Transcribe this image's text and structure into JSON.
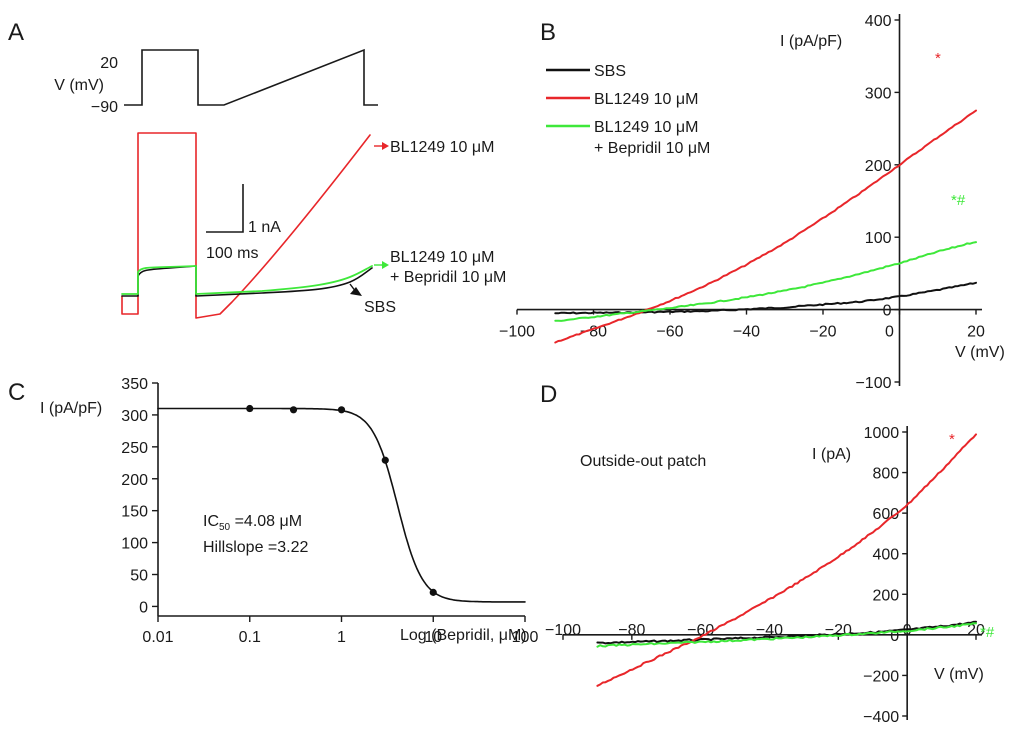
{
  "colors": {
    "red": "#e8262a",
    "green": "#3ee83a",
    "black": "#111111"
  },
  "chart_data": [
    {
      "panel": "A",
      "type": "line",
      "protocol": {
        "ylabel": "V (mV)",
        "levels": [
          "20",
          "−90"
        ],
        "hold_mV": -90,
        "step_mV": 20,
        "ramp_from_mV": -90,
        "ramp_to_mV": 20
      },
      "scale_bar": {
        "y_label": "1 nA",
        "x_label": "100 ms"
      },
      "series": [
        {
          "name": "BL1249 10 μM",
          "color": "#e8262a"
        },
        {
          "name": "BL1249  10  μM",
          "name2": "+ Bepridil 10 μM",
          "color": "#3ee83a"
        },
        {
          "name": "SBS",
          "color": "#111111"
        }
      ]
    },
    {
      "panel": "B",
      "type": "line",
      "xlabel": "V (mV)",
      "ylabel": "I (pA/pF)",
      "xlim": [
        -100,
        20
      ],
      "ylim": [
        -100,
        400
      ],
      "xticks": [
        "−100",
        "−80",
        "−60",
        "−40",
        "−20",
        "0",
        "20"
      ],
      "yticks": [
        "−100",
        "0",
        "100",
        "200",
        "300",
        "400"
      ],
      "xtick_values": [
        -100,
        -80,
        -60,
        -40,
        -20,
        0,
        20
      ],
      "ytick_values": [
        -100,
        0,
        100,
        200,
        300,
        400
      ],
      "legend": [
        "SBS",
        "BL1249 10 μM",
        "BL1249  10  μM",
        "+ Bepridil 10 μM"
      ],
      "annotations": [
        {
          "text": "*",
          "color": "#e8262a"
        },
        {
          "text": "*#",
          "color": "#3ee83a"
        }
      ],
      "series": [
        {
          "name": "SBS",
          "color": "#111111",
          "x": [
            -90,
            -70,
            -50,
            -30,
            -10,
            0,
            10,
            20
          ],
          "y": [
            -5,
            -4,
            -2,
            3,
            11,
            18,
            27,
            37
          ]
        },
        {
          "name": "BL1249 10 μM",
          "color": "#e8262a",
          "x": [
            -90,
            -80,
            -70,
            -60,
            -50,
            -40,
            -30,
            -20,
            -10,
            0,
            10,
            20
          ],
          "y": [
            -45,
            -27,
            -8,
            12,
            35,
            62,
            92,
            126,
            162,
            200,
            238,
            275
          ]
        },
        {
          "name": "BL1249 10 μM + Bepridil 10 μM",
          "color": "#3ee83a",
          "x": [
            -90,
            -80,
            -70,
            -60,
            -50,
            -40,
            -30,
            -20,
            -10,
            0,
            10,
            20
          ],
          "y": [
            -16,
            -10,
            -4,
            2,
            9,
            17,
            26,
            37,
            50,
            64,
            80,
            94
          ]
        }
      ]
    },
    {
      "panel": "C",
      "type": "scatter",
      "xlabel": "Log (Bepridil, μM)",
      "ylabel": "I (pA/pF)",
      "xscale": "log",
      "xlim": [
        0.01,
        100
      ],
      "ylim": [
        -15,
        350
      ],
      "xticks": [
        "0.01",
        "0.1",
        "1",
        "10",
        "100"
      ],
      "yticks": [
        "0",
        "50",
        "100",
        "150",
        "200",
        "250",
        "300",
        "350"
      ],
      "xtick_values": [
        0.01,
        0.1,
        1,
        10,
        100
      ],
      "ytick_values": [
        0,
        50,
        100,
        150,
        200,
        250,
        300,
        350
      ],
      "points": {
        "x": [
          0.1,
          0.3,
          1,
          3,
          10
        ],
        "y": [
          310,
          308,
          308,
          229,
          22
        ]
      },
      "fit": {
        "top": 310,
        "bottom": 7,
        "ic50": 4.08,
        "hill": 3.22
      },
      "ic50_label": "IC",
      "ic50_sub": "50",
      "ic50_value": " =4.08 μM",
      "hillslope_label": "Hillslope =3.22"
    },
    {
      "panel": "D",
      "type": "line",
      "title": "Outside-out patch",
      "xlabel": "V (mV)",
      "ylabel": "I (pA)",
      "xlim": [
        -100,
        20
      ],
      "ylim": [
        -400,
        1000
      ],
      "xticks": [
        "−100",
        "−80",
        "−60",
        "−40",
        "−20",
        "0",
        "20"
      ],
      "yticks": [
        "−400",
        "−200",
        "0",
        "200",
        "400",
        "600",
        "800",
        "1000"
      ],
      "xtick_values": [
        -100,
        -80,
        -60,
        -40,
        -20,
        0,
        20
      ],
      "ytick_values": [
        -400,
        -200,
        0,
        200,
        400,
        600,
        800,
        1000
      ],
      "annotations": [
        {
          "text": "*",
          "color": "#e8262a"
        },
        {
          "text": "*#",
          "color": "#3ee83a"
        }
      ],
      "series": [
        {
          "name": "SBS",
          "color": "#111111",
          "x": [
            -90,
            -70,
            -50,
            -30,
            -10,
            0,
            10,
            20
          ],
          "y": [
            -40,
            -30,
            -18,
            -5,
            12,
            25,
            42,
            62
          ]
        },
        {
          "name": "BL1249 10 μM",
          "color": "#e8262a",
          "x": [
            -90,
            -80,
            -70,
            -60,
            -50,
            -40,
            -30,
            -20,
            -10,
            0,
            10,
            20
          ],
          "y": [
            -250,
            -170,
            -90,
            -10,
            80,
            175,
            275,
            385,
            505,
            640,
            810,
            990
          ]
        },
        {
          "name": "BL1249 10 μM + Bepridil 10 μM",
          "color": "#3ee83a",
          "x": [
            -90,
            -70,
            -50,
            -30,
            -10,
            0,
            10,
            20
          ],
          "y": [
            -55,
            -42,
            -28,
            -12,
            8,
            20,
            36,
            55
          ]
        }
      ]
    }
  ],
  "panel_labels": [
    "A",
    "B",
    "C",
    "D"
  ]
}
